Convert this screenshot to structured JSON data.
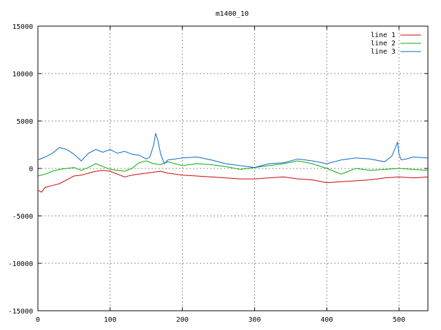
{
  "chart_data": {
    "type": "line",
    "title": "m1400_10",
    "xlabel": "",
    "ylabel": "",
    "xlim": [
      0,
      540
    ],
    "ylim": [
      -15000,
      15000
    ],
    "x_ticks": [
      0,
      100,
      200,
      300,
      400,
      500
    ],
    "y_ticks": [
      -15000,
      -10000,
      -5000,
      0,
      5000,
      10000,
      15000
    ],
    "grid": true,
    "legend_position": "top-right",
    "series": [
      {
        "name": "line 1",
        "color": "#cc0000",
        "x": [
          0,
          5,
          10,
          20,
          30,
          40,
          50,
          60,
          70,
          80,
          90,
          100,
          110,
          120,
          130,
          140,
          150,
          160,
          170,
          180,
          190,
          200,
          220,
          240,
          260,
          280,
          300,
          320,
          340,
          360,
          380,
          400,
          420,
          440,
          460,
          480,
          500,
          520,
          540
        ],
        "y": [
          -2300,
          -2500,
          -2000,
          -1800,
          -1600,
          -1200,
          -800,
          -700,
          -500,
          -300,
          -200,
          -300,
          -600,
          -900,
          -700,
          -600,
          -500,
          -400,
          -300,
          -500,
          -600,
          -700,
          -800,
          -900,
          -1000,
          -1100,
          -1100,
          -1000,
          -900,
          -1100,
          -1200,
          -1500,
          -1400,
          -1300,
          -1200,
          -1000,
          -900,
          -1000,
          -900
        ]
      },
      {
        "name": "line 2",
        "color": "#00aa00",
        "x": [
          0,
          10,
          20,
          30,
          40,
          50,
          60,
          70,
          80,
          90,
          100,
          110,
          120,
          130,
          140,
          150,
          160,
          170,
          180,
          190,
          200,
          220,
          240,
          260,
          280,
          300,
          320,
          340,
          360,
          380,
          400,
          420,
          440,
          460,
          480,
          500,
          520,
          540
        ],
        "y": [
          -800,
          -600,
          -300,
          -100,
          0,
          100,
          -200,
          100,
          500,
          200,
          -100,
          -200,
          -300,
          0,
          600,
          800,
          500,
          400,
          700,
          500,
          300,
          500,
          400,
          200,
          -100,
          100,
          300,
          500,
          800,
          500,
          0,
          -600,
          0,
          -200,
          -100,
          0,
          -100,
          -200
        ]
      },
      {
        "name": "line 3",
        "color": "#0066cc",
        "x": [
          0,
          10,
          20,
          30,
          40,
          50,
          60,
          70,
          80,
          90,
          100,
          110,
          120,
          130,
          140,
          150,
          155,
          160,
          163,
          166,
          170,
          175,
          180,
          190,
          200,
          220,
          240,
          260,
          280,
          300,
          320,
          340,
          360,
          380,
          400,
          420,
          440,
          460,
          480,
          490,
          495,
          498,
          500,
          503,
          510,
          520,
          540
        ],
        "y": [
          900,
          1200,
          1600,
          2200,
          2000,
          1500,
          800,
          1600,
          2000,
          1700,
          2000,
          1600,
          1800,
          1500,
          1400,
          1000,
          1200,
          2400,
          3700,
          3000,
          1500,
          500,
          900,
          1000,
          1100,
          1200,
          900,
          500,
          300,
          100,
          500,
          600,
          1000,
          800,
          500,
          900,
          1100,
          1000,
          700,
          1300,
          2200,
          2800,
          1500,
          900,
          1000,
          1200,
          1100
        ]
      }
    ]
  }
}
